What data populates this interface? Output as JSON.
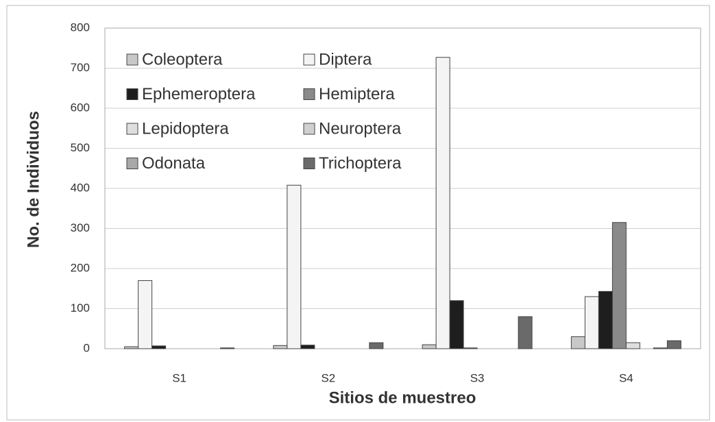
{
  "chart_data": {
    "type": "bar",
    "categories": [
      "S1",
      "S2",
      "S3",
      "S4"
    ],
    "xlabel": "Sitios de muestreo",
    "ylabel": "No. de Individuos",
    "ylim": [
      0,
      800
    ],
    "yticks": [
      0,
      100,
      200,
      300,
      400,
      500,
      600,
      700,
      800
    ],
    "grid": true,
    "legend": "upper left",
    "series": [
      {
        "name": "Coleoptera",
        "color": "#c8c8c8",
        "values": [
          5,
          8,
          10,
          30
        ]
      },
      {
        "name": "Diptera",
        "color": "#f4f4f4",
        "values": [
          170,
          408,
          727,
          130
        ]
      },
      {
        "name": "Ephemeroptera",
        "color": "#1e1e1e",
        "values": [
          7,
          9,
          120,
          143
        ]
      },
      {
        "name": "Hemiptera",
        "color": "#8a8a8a",
        "values": [
          0,
          0,
          2,
          315
        ]
      },
      {
        "name": "Lepidoptera",
        "color": "#dedede",
        "values": [
          0,
          0,
          0,
          15
        ]
      },
      {
        "name": "Neuroptera",
        "color": "#d0d0d0",
        "values": [
          0,
          0,
          0,
          0
        ]
      },
      {
        "name": "Odonata",
        "color": "#a8a8a8",
        "values": [
          0,
          0,
          0,
          2
        ]
      },
      {
        "name": "Trichoptera",
        "color": "#6a6a6a",
        "values": [
          2,
          15,
          80,
          20
        ]
      }
    ]
  }
}
